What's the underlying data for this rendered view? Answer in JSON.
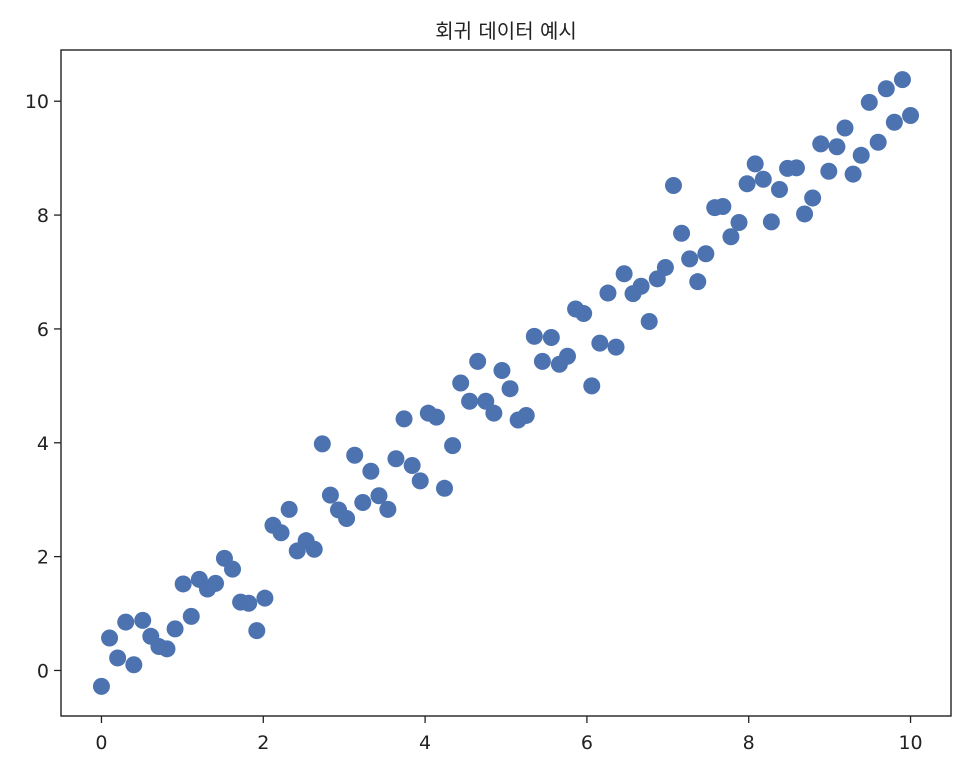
{
  "chart_data": {
    "type": "scatter",
    "title": "회귀 데이터 예시",
    "xlabel": "",
    "ylabel": "",
    "xlim": [
      -0.5,
      10.5
    ],
    "ylim": [
      -0.8,
      10.9
    ],
    "x_ticks": [
      0,
      2,
      4,
      6,
      8,
      10
    ],
    "y_ticks": [
      0,
      2,
      4,
      6,
      8,
      10
    ],
    "x_tick_labels": [
      "0",
      "2",
      "4",
      "6",
      "8",
      "10"
    ],
    "y_tick_labels": [
      "0",
      "2",
      "4",
      "6",
      "8",
      "10"
    ],
    "grid": false,
    "marker_color": "#4c72b0",
    "series": [
      {
        "x": [
          0.0,
          0.1,
          0.2,
          0.3,
          0.4,
          0.51,
          0.61,
          0.71,
          0.81,
          0.91,
          1.01,
          1.11,
          1.21,
          1.31,
          1.41,
          1.52,
          1.62,
          1.72,
          1.82,
          1.92,
          2.02,
          2.12,
          2.22,
          2.32,
          2.42,
          2.53,
          2.63,
          2.73,
          2.83,
          2.93,
          3.03,
          3.13,
          3.23,
          3.33,
          3.43,
          3.54,
          3.64,
          3.74,
          3.84,
          3.94,
          4.04,
          4.14,
          4.24,
          4.34,
          4.44,
          4.55,
          4.65,
          4.75,
          4.85,
          4.95,
          5.05,
          5.15,
          5.25,
          5.35,
          5.45,
          5.56,
          5.66,
          5.76,
          5.86,
          5.96,
          6.06,
          6.16,
          6.26,
          6.36,
          6.46,
          6.57,
          6.67,
          6.77,
          6.87,
          6.97,
          7.07,
          7.17,
          7.27,
          7.37,
          7.47,
          7.58,
          7.68,
          7.78,
          7.88,
          7.98,
          8.08,
          8.18,
          8.28,
          8.38,
          8.48,
          8.59,
          8.69,
          8.79,
          8.89,
          8.99,
          9.09,
          9.19,
          9.29,
          9.39,
          9.49,
          9.6,
          9.7,
          9.8,
          9.9,
          10.0
        ],
        "y": [
          -0.28,
          0.57,
          0.22,
          0.85,
          0.1,
          0.88,
          0.6,
          0.42,
          0.38,
          0.73,
          1.52,
          0.95,
          1.6,
          1.43,
          1.53,
          1.97,
          1.78,
          1.2,
          1.18,
          0.7,
          1.27,
          2.55,
          2.42,
          2.83,
          2.1,
          2.28,
          2.13,
          3.98,
          3.08,
          2.82,
          2.67,
          3.78,
          2.95,
          3.5,
          3.07,
          2.83,
          3.72,
          4.42,
          3.6,
          3.33,
          4.52,
          4.45,
          3.2,
          3.95,
          5.05,
          4.73,
          5.43,
          4.73,
          4.52,
          5.27,
          4.95,
          4.4,
          4.48,
          5.87,
          5.43,
          5.85,
          5.38,
          5.52,
          6.35,
          6.27,
          5.0,
          5.75,
          6.63,
          5.68,
          6.97,
          6.62,
          6.75,
          6.13,
          6.88,
          7.08,
          8.52,
          7.68,
          7.23,
          6.83,
          7.32,
          8.13,
          8.15,
          7.62,
          7.87,
          8.55,
          8.9,
          8.63,
          7.88,
          8.45,
          8.82,
          8.83,
          8.02,
          8.3,
          9.25,
          8.77,
          9.2,
          9.53,
          8.72,
          9.05,
          9.98,
          9.28,
          10.22,
          9.63,
          10.38,
          9.75
        ]
      }
    ]
  }
}
